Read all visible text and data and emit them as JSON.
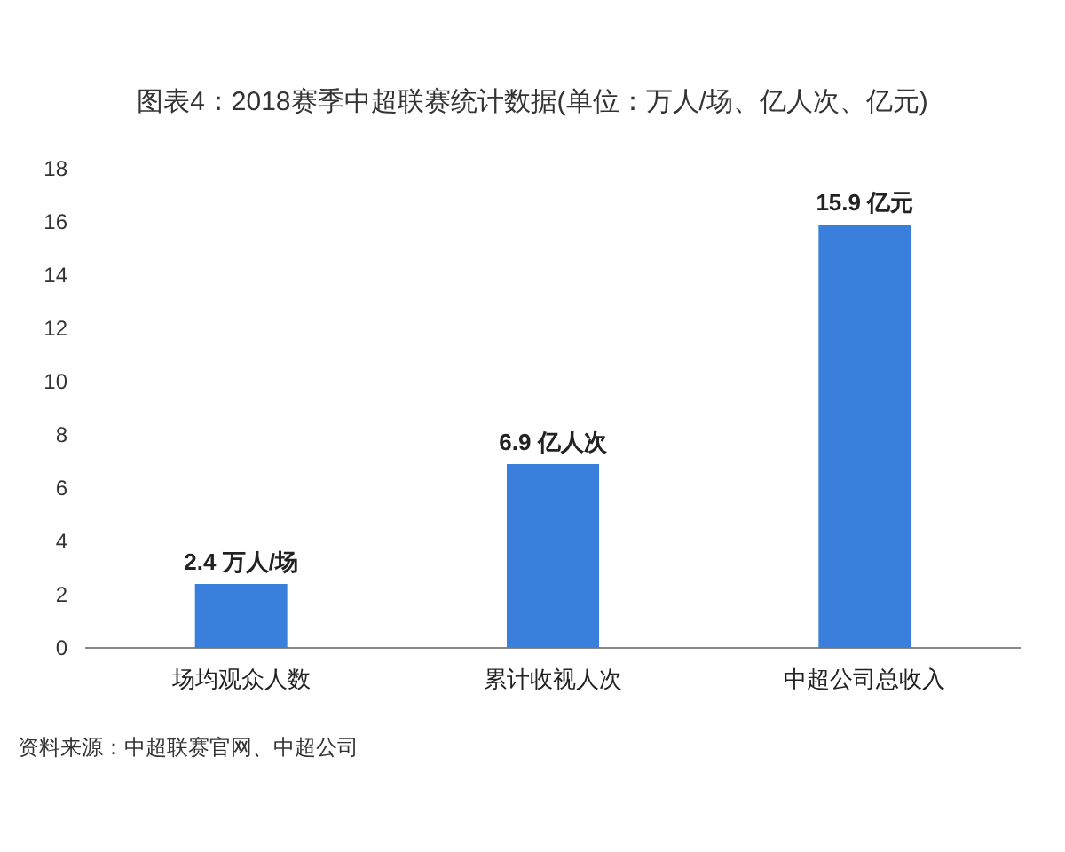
{
  "chart_data": {
    "type": "bar",
    "title": "图表4：2018赛季中超联赛统计数据(单位：万人/场、亿人次、亿元)",
    "categories": [
      "场均观众人数",
      "累计收视人次",
      "中超公司总收入"
    ],
    "values": [
      2.4,
      6.9,
      15.9
    ],
    "value_labels": [
      "2.4 万人/场",
      "6.9 亿人次",
      "15.9 亿元"
    ],
    "color": "#3b7fdc",
    "ylim": [
      0,
      18
    ],
    "yticks": [
      0,
      2,
      4,
      6,
      8,
      10,
      12,
      14,
      16,
      18
    ],
    "grid": false,
    "annotations": [
      "资料来源：中超联赛官网、中超公司"
    ]
  }
}
